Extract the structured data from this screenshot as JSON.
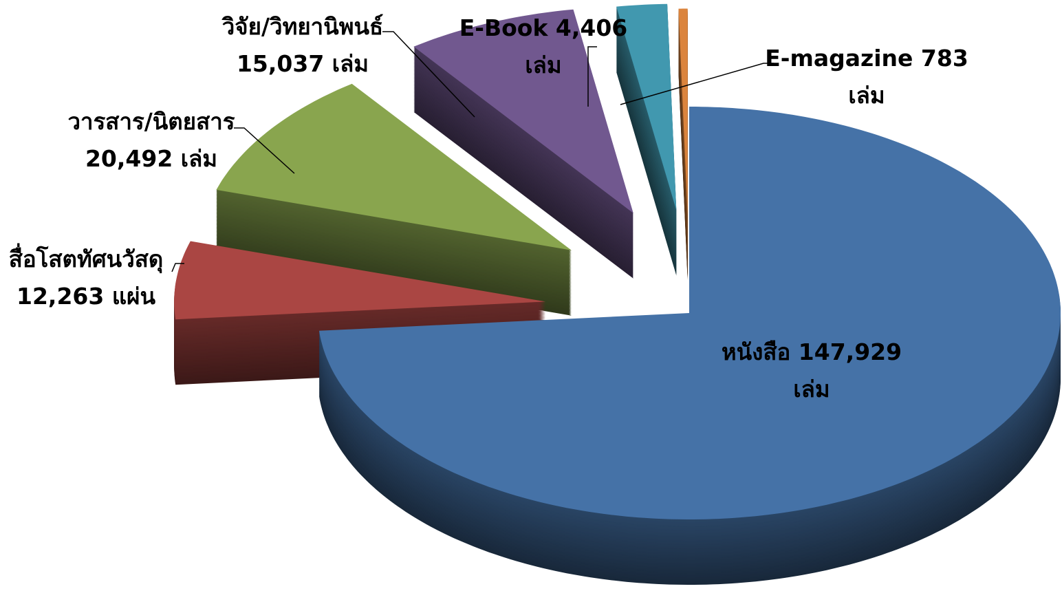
{
  "chart_data": {
    "type": "pie3d",
    "categories": [
      "หนังสือ",
      "สื่อโสตทัศนวัสดุ",
      "วารสาร/นิตยสาร",
      "วิจัย/วิทยานิพนธ์",
      "E-Book",
      "E-magazine"
    ],
    "values": [
      147929,
      12263,
      20492,
      15037,
      4406,
      783
    ],
    "value_labels": [
      "147,929 เล่ม",
      "12,263  แผ่น",
      "20,492 เล่ม",
      "15,037 เล่ม",
      "4,406 เล่ม",
      "783 เล่ม"
    ],
    "colors": [
      "#4572a7",
      "#aa4643",
      "#89a54e",
      "#71588f",
      "#4198af",
      "#db843d"
    ]
  }
}
